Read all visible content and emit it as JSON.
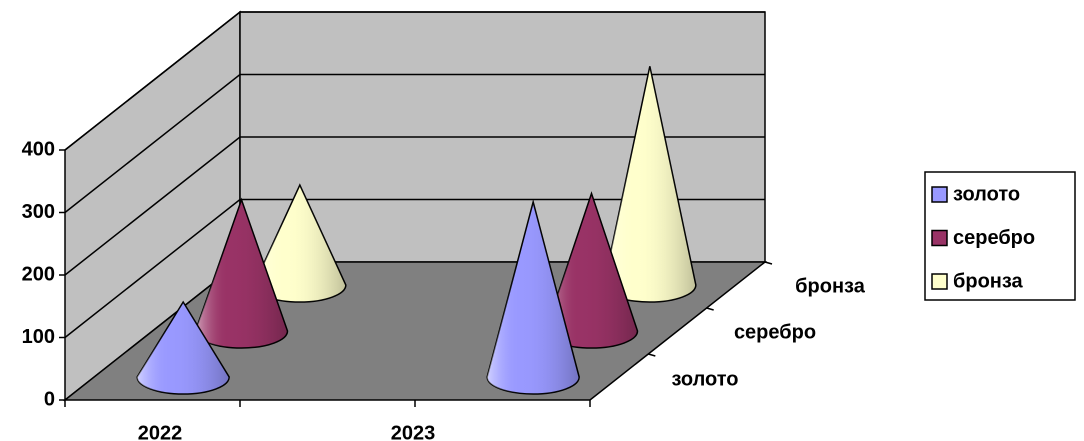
{
  "chart_data": {
    "type": "cone3d",
    "categories": [
      "2022",
      "2023"
    ],
    "series": [
      {
        "name": "золото",
        "color": "#9999ff",
        "values": [
          120,
          280
        ]
      },
      {
        "name": "серебро",
        "color": "#993366",
        "values": [
          210,
          220
        ]
      },
      {
        "name": "бронза",
        "color": "#ffffcc",
        "values": [
          160,
          350
        ]
      }
    ],
    "ylim": [
      0,
      400
    ],
    "yticks": [
      0,
      100,
      200,
      300,
      400
    ],
    "grid": true,
    "legend": "right"
  }
}
